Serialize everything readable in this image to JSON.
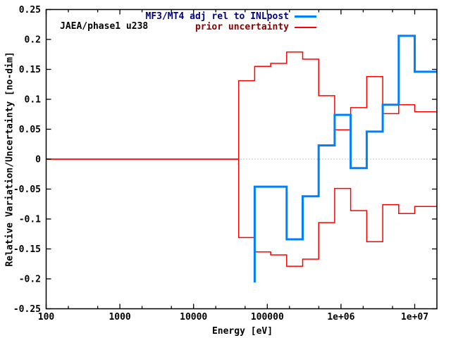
{
  "chart_data": {
    "type": "line",
    "subtype": "steps",
    "inset_label": "JAEA/phase1 u238",
    "xlabel": "Energy [eV]",
    "ylabel": "Relative Variation/Uncertainty [no-dim]",
    "x_scale": "log",
    "xlim": [
      100,
      20000000
    ],
    "ylim": [
      -0.25,
      0.25
    ],
    "grid": false,
    "zero_line": true,
    "zero_line_color": "#888888",
    "x_ticks": [
      {
        "value": 100,
        "label": "100"
      },
      {
        "value": 1000,
        "label": "1000"
      },
      {
        "value": 10000,
        "label": "10000"
      },
      {
        "value": 100000,
        "label": "100000"
      },
      {
        "value": 1000000,
        "label": "1e+06"
      },
      {
        "value": 10000000,
        "label": "1e+07"
      }
    ],
    "x_minor_tick_multipliers": [
      2,
      5
    ],
    "y_ticks": [
      {
        "value": 0.25,
        "label": "0.25"
      },
      {
        "value": 0.2,
        "label": "0.2"
      },
      {
        "value": 0.15,
        "label": "0.15"
      },
      {
        "value": 0.1,
        "label": "0.1"
      },
      {
        "value": 0.05,
        "label": "0.05"
      },
      {
        "value": 0,
        "label": "0"
      },
      {
        "value": -0.05,
        "label": "-0.05"
      },
      {
        "value": -0.1,
        "label": "-0.1"
      },
      {
        "value": -0.15,
        "label": "-0.15"
      },
      {
        "value": -0.2,
        "label": "-0.2"
      },
      {
        "value": -0.25,
        "label": "-0.25"
      }
    ],
    "group_boundaries_eV": [
      40870,
      67380,
      111100,
      183200,
      302000,
      497900,
      820800,
      1353000,
      2231000,
      3679000,
      6065000,
      10000000,
      20000000
    ],
    "legend": [
      {
        "label": "MF3/MT4 adj rel to INLpost",
        "color": "#0080ff",
        "text_color": "#000080",
        "line_width": 3
      },
      {
        "label": "prior uncertainty",
        "color": "#ff0000",
        "text_color": "#8b0000",
        "line_width": 2
      }
    ],
    "series": [
      {
        "name": "prior uncertainty (+sigma)",
        "color": "#ff0000",
        "line_width": 1.5,
        "points": [
          [
            100,
            0
          ],
          [
            40870,
            0
          ],
          [
            40870,
            0.131
          ],
          [
            67380,
            0.131
          ],
          [
            67380,
            0.155
          ],
          [
            111100,
            0.155
          ],
          [
            111100,
            0.16
          ],
          [
            183200,
            0.16
          ],
          [
            183200,
            0.179
          ],
          [
            302000,
            0.179
          ],
          [
            302000,
            0.167
          ],
          [
            497900,
            0.167
          ],
          [
            497900,
            0.106
          ],
          [
            820800,
            0.106
          ],
          [
            820800,
            0.049
          ],
          [
            1353000,
            0.049
          ],
          [
            1353000,
            0.086
          ],
          [
            2231000,
            0.086
          ],
          [
            2231000,
            0.138
          ],
          [
            3679000,
            0.138
          ],
          [
            3679000,
            0.076
          ],
          [
            6065000,
            0.076
          ],
          [
            6065000,
            0.091
          ],
          [
            10000000,
            0.091
          ],
          [
            10000000,
            0.079
          ],
          [
            20000000,
            0.079
          ]
        ]
      },
      {
        "name": "prior uncertainty (-sigma)",
        "color": "#ff0000",
        "line_width": 1.5,
        "points": [
          [
            100,
            0
          ],
          [
            40870,
            0
          ],
          [
            40870,
            -0.131
          ],
          [
            67380,
            -0.131
          ],
          [
            67380,
            -0.155
          ],
          [
            111100,
            -0.155
          ],
          [
            111100,
            -0.16
          ],
          [
            183200,
            -0.16
          ],
          [
            183200,
            -0.179
          ],
          [
            302000,
            -0.179
          ],
          [
            302000,
            -0.167
          ],
          [
            497900,
            -0.167
          ],
          [
            497900,
            -0.106
          ],
          [
            820800,
            -0.106
          ],
          [
            820800,
            -0.049
          ],
          [
            1353000,
            -0.049
          ],
          [
            1353000,
            -0.086
          ],
          [
            2231000,
            -0.086
          ],
          [
            2231000,
            -0.138
          ],
          [
            3679000,
            -0.138
          ],
          [
            3679000,
            -0.076
          ],
          [
            6065000,
            -0.076
          ],
          [
            6065000,
            -0.091
          ],
          [
            10000000,
            -0.091
          ],
          [
            10000000,
            -0.079
          ],
          [
            20000000,
            -0.079
          ]
        ]
      },
      {
        "name": "MF3/MT4 adj rel to INLpost",
        "color": "#0080ff",
        "line_width": 3,
        "points": [
          [
            67380,
            -0.206
          ],
          [
            67380,
            -0.046
          ],
          [
            183200,
            -0.046
          ],
          [
            183200,
            -0.134
          ],
          [
            302000,
            -0.134
          ],
          [
            302000,
            -0.062
          ],
          [
            497900,
            -0.062
          ],
          [
            497900,
            0.023
          ],
          [
            820800,
            0.023
          ],
          [
            820800,
            0.074
          ],
          [
            1353000,
            0.074
          ],
          [
            1353000,
            -0.015
          ],
          [
            2231000,
            -0.015
          ],
          [
            2231000,
            0.046
          ],
          [
            3679000,
            0.046
          ],
          [
            3679000,
            0.091
          ],
          [
            6065000,
            0.091
          ],
          [
            6065000,
            0.206
          ],
          [
            10000000,
            0.206
          ],
          [
            10000000,
            0.146
          ],
          [
            20000000,
            0.146
          ]
        ]
      }
    ]
  }
}
